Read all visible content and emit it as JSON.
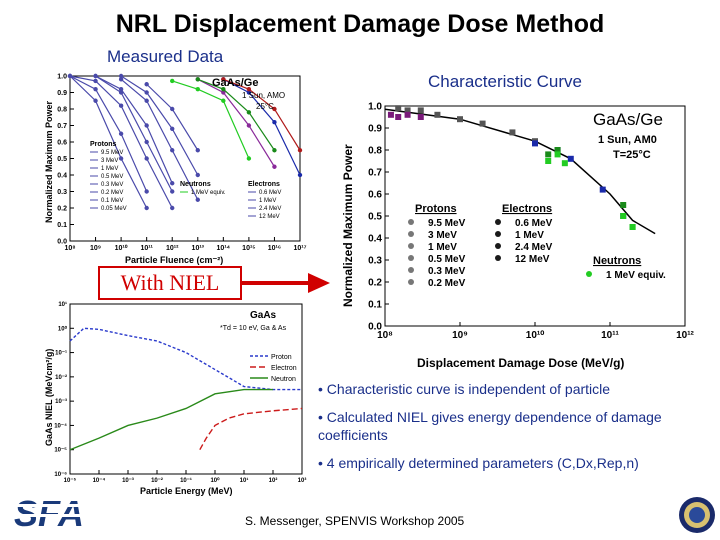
{
  "title": "NRL Displacement Damage Dose Method",
  "measured_label": "Measured Data",
  "characteristic_label": "Characteristic Curve",
  "niel_label": "With NIEL",
  "bullets": [
    "• Characteristic curve is independent of particle",
    "• Calculated NIEL gives energy dependence of damage coefficients",
    "• 4 empirically determined parameters (C,Dx,Rep,n)"
  ],
  "footer": "S. Messenger, SPENVIS Workshop 2005",
  "logos": {
    "left": "SFA",
    "right": "Department of the Navy seal"
  },
  "colors": {
    "title_blue": "#1a2f8a",
    "niel_red": "#d00000",
    "proton": "#3a3acc",
    "electron": "#cc1a1a",
    "neutron": "#2a8a1a"
  },
  "chart_data": [
    {
      "type": "line",
      "title": "GaAs/Ge",
      "annotations": [
        "1 Sun, AMO",
        "25°C"
      ],
      "xlabel": "Particle Fluence (cm⁻²)",
      "ylabel": "Normalized Maximum Power",
      "xscale": "log",
      "xlim": [
        100000000.0,
        1e+17
      ],
      "ylim": [
        0.0,
        1.0
      ],
      "xticks": [
        "10⁸",
        "10⁹",
        "10¹⁰",
        "10¹¹",
        "10¹²",
        "10¹³",
        "10¹⁴",
        "10¹⁵",
        "10¹⁶",
        "10¹⁷"
      ],
      "yticks": [
        "0.0",
        "0.1",
        "0.2",
        "0.3",
        "0.4",
        "0.5",
        "0.6",
        "0.7",
        "0.8",
        "0.9",
        "1.0"
      ],
      "grid": false,
      "legend_groups": [
        {
          "title": "Protons",
          "entries": [
            "9.5 MeV",
            "3 MeV",
            "1 MeV",
            "0.5 MeV",
            "0.3 MeV",
            "0.2 MeV",
            "0.1 MeV",
            "0.05 MeV"
          ]
        },
        {
          "title": "Neutrons",
          "entries": [
            "1 MeV equiv."
          ]
        },
        {
          "title": "Electrons",
          "entries": [
            "0.6 MeV",
            "1 MeV",
            "2.4 MeV",
            "12 MeV"
          ]
        }
      ],
      "series": [
        {
          "name": "0.05 MeV",
          "color": "#4a4aaa",
          "x": [
            100000000.0,
            1000000000.0,
            10000000000.0,
            100000000000.0
          ],
          "y": [
            1.0,
            0.85,
            0.5,
            0.2
          ]
        },
        {
          "name": "0.1 MeV",
          "color": "#4a4aaa",
          "x": [
            100000000.0,
            1000000000.0,
            10000000000.0,
            100000000000.0
          ],
          "y": [
            1.0,
            0.92,
            0.65,
            0.3
          ]
        },
        {
          "name": "0.2 MeV",
          "color": "#4a4aaa",
          "x": [
            100000000.0,
            1000000000.0,
            10000000000.0,
            100000000000.0,
            1000000000000.0
          ],
          "y": [
            1.0,
            0.97,
            0.82,
            0.5,
            0.2
          ]
        },
        {
          "name": "0.3 MeV",
          "color": "#4a4aaa",
          "x": [
            1000000000.0,
            10000000000.0,
            100000000000.0,
            1000000000000.0
          ],
          "y": [
            1.0,
            0.9,
            0.6,
            0.3
          ]
        },
        {
          "name": "0.5 MeV",
          "color": "#4a4aaa",
          "x": [
            1000000000.0,
            10000000000.0,
            100000000000.0,
            1000000000000.0
          ],
          "y": [
            1.0,
            0.92,
            0.7,
            0.35
          ]
        },
        {
          "name": "1 MeV",
          "color": "#4a4aaa",
          "x": [
            10000000000.0,
            100000000000.0,
            1000000000000.0,
            10000000000000.0
          ],
          "y": [
            0.98,
            0.85,
            0.55,
            0.25
          ]
        },
        {
          "name": "3 MeV",
          "color": "#4a4aaa",
          "x": [
            10000000000.0,
            100000000000.0,
            1000000000000.0,
            10000000000000.0
          ],
          "y": [
            1.0,
            0.9,
            0.68,
            0.4
          ]
        },
        {
          "name": "9.5 MeV",
          "color": "#4a4aaa",
          "x": [
            100000000000.0,
            1000000000000.0,
            10000000000000.0
          ],
          "y": [
            0.95,
            0.8,
            0.55
          ]
        },
        {
          "name": "1 MeV equiv.",
          "color": "#22cc22",
          "x": [
            1000000000000.0,
            10000000000000.0,
            100000000000000.0,
            1000000000000000.0
          ],
          "y": [
            0.97,
            0.92,
            0.85,
            0.5
          ]
        },
        {
          "name": "12 MeV",
          "color": "#8a2a9a",
          "x": [
            10000000000000.0,
            100000000000000.0,
            1000000000000000.0,
            1e+16
          ],
          "y": [
            0.98,
            0.9,
            0.7,
            0.45
          ]
        },
        {
          "name": "2.4 MeV",
          "color": "#1a8a1a",
          "x": [
            10000000000000.0,
            100000000000000.0,
            1000000000000000.0,
            1e+16
          ],
          "y": [
            0.98,
            0.92,
            0.78,
            0.55
          ]
        },
        {
          "name": "1 MeV",
          "color": "#1a2aaa",
          "x": [
            100000000000000.0,
            1000000000000000.0,
            1e+16,
            1e+17
          ],
          "y": [
            0.98,
            0.9,
            0.72,
            0.4
          ]
        },
        {
          "name": "0.6 MeV",
          "color": "#b01a1a",
          "x": [
            100000000000000.0,
            1000000000000000.0,
            1e+16,
            1e+17
          ],
          "y": [
            0.98,
            0.92,
            0.8,
            0.55
          ]
        }
      ]
    },
    {
      "type": "scatter",
      "title": "GaAs/Ge",
      "annotations": [
        "1 Sun, AM0",
        "T=25°C"
      ],
      "xlabel": "Displacement Damage Dose (MeV/g)",
      "ylabel": "Normalized Maximum Power",
      "xscale": "log",
      "xlim": [
        100000000.0,
        1000000000000.0
      ],
      "ylim": [
        0.0,
        1.0
      ],
      "xticks": [
        "10⁸",
        "10⁹",
        "10¹⁰",
        "10¹¹",
        "10¹²"
      ],
      "yticks": [
        "0.0",
        "0.1",
        "0.2",
        "0.3",
        "0.4",
        "0.5",
        "0.6",
        "0.7",
        "0.8",
        "0.9",
        "1.0"
      ],
      "grid": false,
      "legend_groups": [
        {
          "title": "Protons",
          "entries": [
            "9.5 MeV",
            "3 MeV",
            "1 MeV",
            "0.5 MeV",
            "0.3 MeV",
            "0.2 MeV"
          ]
        },
        {
          "title": "Electrons",
          "entries": [
            "0.6 MeV",
            "1 MeV",
            "2.4 MeV",
            "12 MeV"
          ]
        },
        {
          "title": "Neutrons",
          "entries": [
            "1 MeV equiv."
          ]
        }
      ],
      "curve": {
        "x": [
          100000000.0,
          1000000000.0,
          10000000000.0,
          30000000000.0,
          100000000000.0,
          200000000000.0,
          400000000000.0
        ],
        "y": [
          0.985,
          0.94,
          0.84,
          0.76,
          0.6,
          0.48,
          0.42
        ]
      },
      "points": [
        {
          "group": "Protons",
          "color": "#555555",
          "x": [
            150000000.0,
            200000000.0,
            300000000.0,
            500000000.0,
            1000000000.0,
            2000000000.0,
            5000000000.0,
            10000000000.0
          ],
          "y": [
            0.99,
            0.98,
            0.98,
            0.96,
            0.94,
            0.92,
            0.88,
            0.84
          ]
        },
        {
          "group": "Electrons",
          "color": "#7a1a7a",
          "x": [
            120000000.0,
            150000000.0,
            200000000.0,
            300000000.0
          ],
          "y": [
            0.96,
            0.95,
            0.96,
            0.95
          ]
        },
        {
          "group": "Electrons",
          "color": "#1a2aaa",
          "x": [
            10000000000.0,
            20000000000.0,
            30000000000.0,
            80000000000.0,
            150000000000.0
          ],
          "y": [
            0.83,
            0.8,
            0.76,
            0.62,
            0.5
          ]
        },
        {
          "group": "Electrons",
          "color": "#1a8a1a",
          "x": [
            15000000000.0,
            20000000000.0,
            150000000000.0,
            200000000000.0
          ],
          "y": [
            0.78,
            0.8,
            0.55,
            0.45
          ]
        },
        {
          "group": "Neutrons",
          "color": "#22cc22",
          "x": [
            15000000000.0,
            20000000000.0,
            25000000000.0,
            150000000000.0,
            200000000000.0
          ],
          "y": [
            0.75,
            0.78,
            0.74,
            0.5,
            0.45
          ]
        }
      ]
    },
    {
      "type": "line",
      "title": "GaAs",
      "annotations": [
        "*Td = 10 eV, Ga & As"
      ],
      "xlabel": "Particle Energy (MeV)",
      "ylabel": "GaAs NIEL (MeVcm²/g)",
      "xscale": "log",
      "yscale": "log",
      "xlim": [
        1e-05,
        1000.0
      ],
      "ylim": [
        1e-06,
        10.0
      ],
      "xticks": [
        "10⁻⁵",
        "10⁻⁴",
        "10⁻³",
        "10⁻²",
        "10⁻¹",
        "10⁰",
        "10¹",
        "10²",
        "10³"
      ],
      "yticks": [
        "10⁻⁶",
        "10⁻⁵",
        "10⁻⁴",
        "10⁻³",
        "10⁻²",
        "10⁻¹",
        "10⁰",
        "10¹"
      ],
      "grid": false,
      "legend_position": "right",
      "series": [
        {
          "name": "Proton",
          "color": "#2a3acc",
          "x": [
            1e-05,
            3e-05,
            0.0001,
            0.001,
            0.01,
            0.1,
            1,
            10,
            100,
            1000
          ],
          "y": [
            0.3,
            1.0,
            0.9,
            0.5,
            0.3,
            0.1,
            0.02,
            0.004,
            0.003,
            0.003
          ]
        },
        {
          "name": "Electron",
          "color": "#cc1a1a",
          "x": [
            0.3,
            0.5,
            1,
            3,
            10,
            100,
            1000
          ],
          "y": [
            1e-05,
            3e-05,
            0.0001,
            0.0002,
            0.0003,
            0.0004,
            0.0005
          ]
        },
        {
          "name": "Neutron",
          "color": "#2a8a1a",
          "x": [
            1e-05,
            0.0001,
            0.001,
            0.01,
            0.1,
            1,
            10,
            100
          ],
          "y": [
            1e-05,
            3e-05,
            0.0001,
            0.0002,
            0.0005,
            0.002,
            0.003,
            0.003
          ]
        }
      ]
    }
  ]
}
